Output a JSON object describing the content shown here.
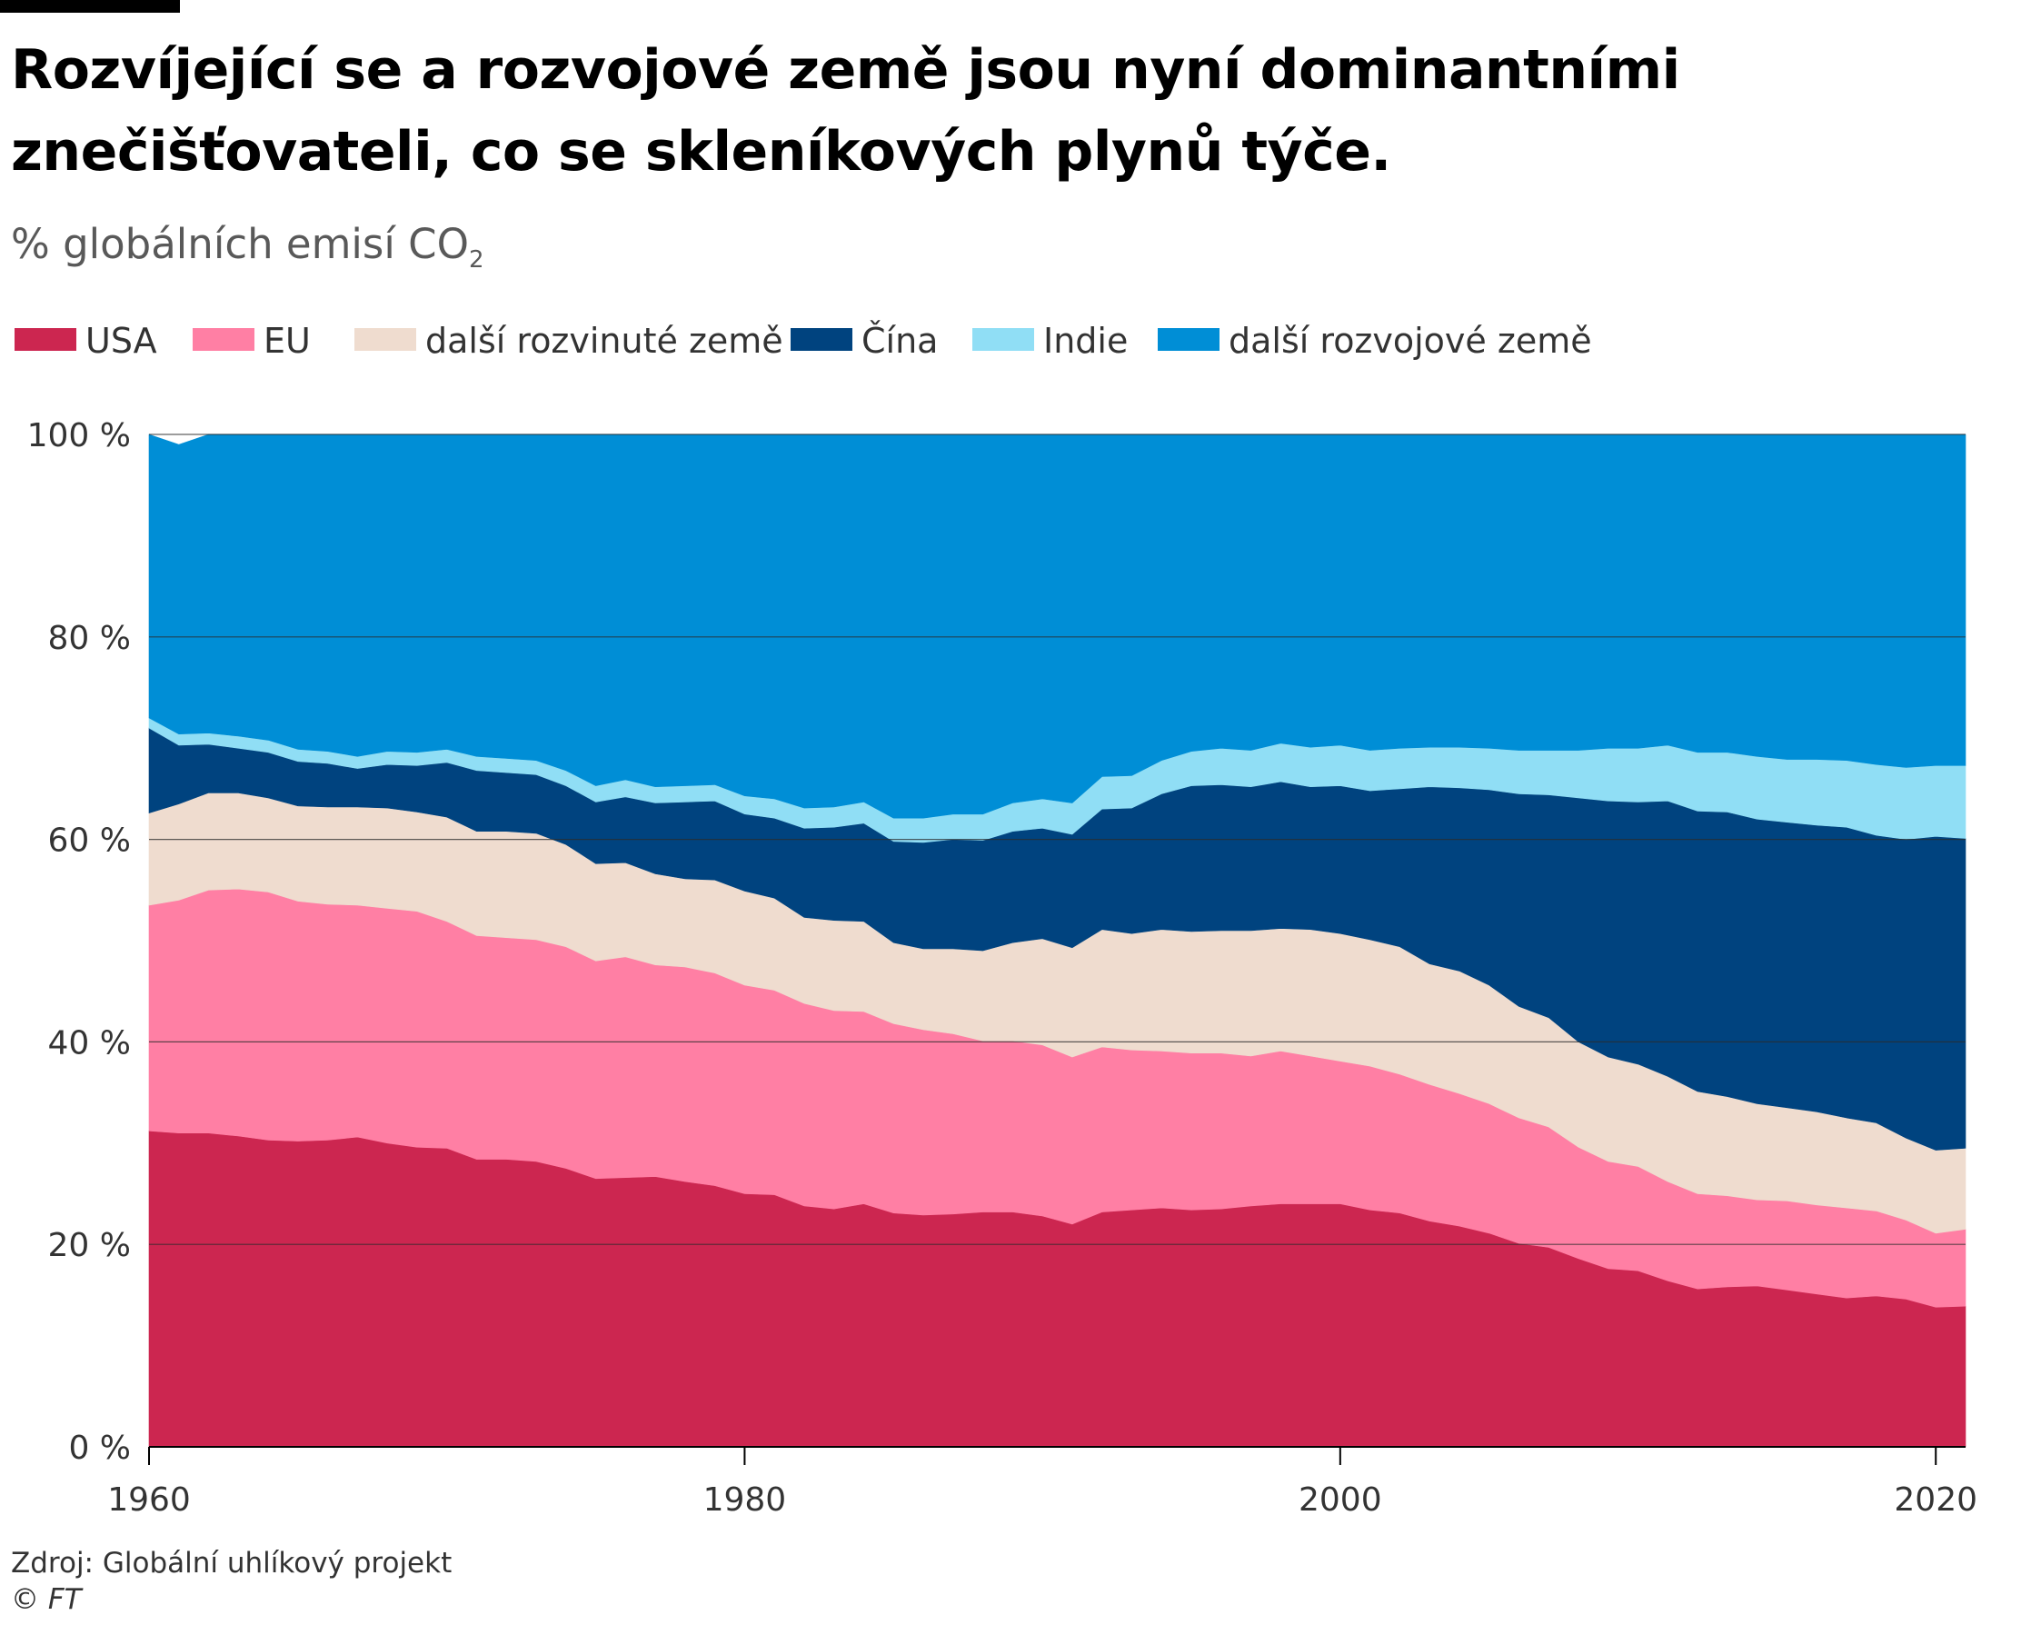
{
  "title": "Rozvíjející se a rozvojové země jsou nyní dominantními znečišťovateli, co se skleníkových plynů týče.",
  "subtitle_main": "% globálních emisí CO",
  "subtitle_sub": "2",
  "source": "Zdroj: Globální uhlíkový projekt",
  "copyright": "© FT",
  "legend": [
    {
      "label": "USA",
      "color": "#cc2650"
    },
    {
      "label": "EU",
      "color": "#ff7fa4"
    },
    {
      "label": "další rozvinuté země",
      "color": "#efdccf"
    },
    {
      "label": "Čína",
      "color": "#00437f"
    },
    {
      "label": "Indie",
      "color": "#90def5"
    },
    {
      "label": "další rozvojové země",
      "color": "#008ed6"
    }
  ],
  "chart_data": {
    "type": "area",
    "stacked": true,
    "ylabel": "",
    "xlabel": "",
    "ylim": [
      0,
      100
    ],
    "xlim": [
      1960,
      2021
    ],
    "y_ticks": [
      "0 %",
      "20 %",
      "40 %",
      "60 %",
      "80 %",
      "100 %"
    ],
    "x_ticks": [
      "1960",
      "1980",
      "2000",
      "2020"
    ],
    "grid": true,
    "legend_position": "top",
    "x": [
      1960,
      1961,
      1962,
      1963,
      1964,
      1965,
      1966,
      1967,
      1968,
      1969,
      1970,
      1971,
      1972,
      1973,
      1974,
      1975,
      1976,
      1977,
      1978,
      1979,
      1980,
      1981,
      1982,
      1983,
      1984,
      1985,
      1986,
      1987,
      1988,
      1989,
      1990,
      1991,
      1992,
      1993,
      1994,
      1995,
      1996,
      1997,
      1998,
      1999,
      2000,
      2001,
      2002,
      2003,
      2004,
      2005,
      2006,
      2007,
      2008,
      2009,
      2010,
      2011,
      2012,
      2013,
      2014,
      2015,
      2016,
      2017,
      2018,
      2019,
      2020,
      2021
    ],
    "series": [
      {
        "name": "USA",
        "color": "#cc2650",
        "values": [
          31.2,
          31.0,
          31.0,
          30.7,
          30.3,
          30.2,
          30.3,
          30.6,
          30.0,
          29.6,
          29.5,
          28.4,
          28.4,
          28.2,
          27.5,
          26.5,
          26.6,
          26.7,
          26.2,
          25.8,
          25.0,
          24.9,
          23.8,
          23.5,
          24.0,
          23.1,
          22.9,
          23.0,
          23.2,
          23.2,
          22.8,
          22.0,
          23.2,
          23.4,
          23.6,
          23.4,
          23.5,
          23.8,
          24.0,
          24.0,
          24.0,
          23.4,
          23.1,
          22.3,
          21.8,
          21.1,
          20.1,
          19.7,
          18.6,
          17.6,
          17.4,
          16.4,
          15.6,
          15.8,
          15.9,
          15.5,
          15.1,
          14.7,
          14.9,
          14.6,
          13.8,
          13.9
        ]
      },
      {
        "name": "EU",
        "color": "#ff7fa4",
        "values": [
          22.3,
          23.0,
          24.0,
          24.4,
          24.5,
          23.7,
          23.3,
          22.9,
          23.2,
          23.3,
          22.4,
          22.1,
          21.9,
          21.9,
          21.9,
          21.5,
          21.8,
          20.9,
          21.2,
          21.0,
          20.6,
          20.2,
          20.0,
          19.6,
          19.0,
          18.7,
          18.3,
          17.8,
          16.9,
          16.9,
          16.9,
          16.5,
          16.3,
          15.8,
          15.5,
          15.5,
          15.4,
          14.8,
          15.1,
          14.6,
          14.1,
          14.2,
          13.7,
          13.5,
          13.1,
          12.8,
          12.4,
          11.9,
          11.0,
          10.6,
          10.3,
          9.8,
          9.4,
          9.0,
          8.5,
          8.8,
          8.8,
          8.9,
          8.4,
          7.8,
          7.3,
          7.6
        ]
      },
      {
        "name": "další rozvinuté země",
        "color": "#efdccf",
        "values": [
          9.1,
          9.5,
          9.6,
          9.5,
          9.3,
          9.4,
          9.6,
          9.7,
          9.9,
          9.8,
          10.3,
          10.3,
          10.5,
          10.5,
          10.1,
          9.6,
          9.3,
          9.0,
          8.7,
          9.2,
          9.3,
          9.1,
          8.5,
          8.9,
          8.9,
          8.0,
          8.0,
          8.4,
          8.9,
          9.7,
          10.5,
          10.8,
          11.6,
          11.5,
          12.0,
          12.0,
          12.1,
          12.4,
          12.1,
          12.5,
          12.6,
          12.5,
          12.6,
          11.9,
          12.1,
          11.7,
          11.0,
          10.8,
          10.4,
          10.3,
          10.1,
          10.4,
          10.1,
          9.8,
          9.5,
          9.2,
          9.2,
          8.9,
          8.7,
          8.1,
          8.2,
          8.0
        ]
      },
      {
        "name": "Čína",
        "color": "#00437f",
        "values": [
          8.4,
          5.8,
          4.8,
          4.4,
          4.5,
          4.4,
          4.3,
          3.8,
          4.3,
          4.6,
          5.4,
          6.0,
          5.8,
          5.8,
          5.8,
          6.1,
          6.5,
          7.0,
          7.6,
          7.8,
          7.6,
          7.9,
          8.8,
          9.2,
          9.7,
          10.0,
          10.5,
          10.8,
          10.9,
          11.0,
          10.9,
          11.2,
          11.9,
          12.4,
          13.4,
          14.4,
          14.4,
          14.2,
          14.5,
          14.1,
          14.6,
          14.7,
          15.6,
          17.5,
          18.1,
          19.3,
          21.0,
          22.0,
          24.1,
          25.3,
          25.9,
          27.2,
          27.7,
          28.1,
          28.1,
          28.2,
          28.3,
          28.7,
          28.4,
          29.5,
          31.0,
          30.6
        ]
      },
      {
        "name": "Indie",
        "color": "#90def5",
        "values": [
          1.0,
          1.1,
          1.1,
          1.2,
          1.2,
          1.2,
          1.2,
          1.2,
          1.3,
          1.3,
          1.3,
          1.4,
          1.4,
          1.4,
          1.5,
          1.6,
          1.7,
          1.6,
          1.6,
          1.6,
          1.8,
          1.9,
          2.0,
          2.0,
          2.1,
          2.3,
          2.4,
          2.5,
          2.6,
          2.8,
          2.9,
          3.1,
          3.2,
          3.2,
          3.3,
          3.4,
          3.6,
          3.6,
          3.8,
          3.9,
          4.0,
          4.0,
          4.0,
          3.9,
          4.0,
          4.1,
          4.3,
          4.4,
          4.7,
          5.2,
          5.3,
          5.5,
          5.8,
          5.9,
          6.2,
          6.2,
          6.5,
          6.6,
          7.0,
          7.1,
          7.0,
          7.2
        ]
      },
      {
        "name": "další rozvojové země",
        "color": "#008ed6",
        "values": [
          28.0,
          28.6,
          29.5,
          29.8,
          30.2,
          31.1,
          31.3,
          31.8,
          31.3,
          31.4,
          31.1,
          31.8,
          32.0,
          32.2,
          33.2,
          34.7,
          34.1,
          34.8,
          34.7,
          34.6,
          35.7,
          36.0,
          36.9,
          36.8,
          36.3,
          37.9,
          37.9,
          37.5,
          37.5,
          36.4,
          36.0,
          36.4,
          33.8,
          33.7,
          32.2,
          31.3,
          31.0,
          31.2,
          30.5,
          30.9,
          30.7,
          31.2,
          31.0,
          30.9,
          30.9,
          31.0,
          31.2,
          31.2,
          31.2,
          31.0,
          31.0,
          30.7,
          31.4,
          31.4,
          31.8,
          32.1,
          32.1,
          32.2,
          32.6,
          32.9,
          32.7,
          32.7
        ]
      }
    ]
  }
}
